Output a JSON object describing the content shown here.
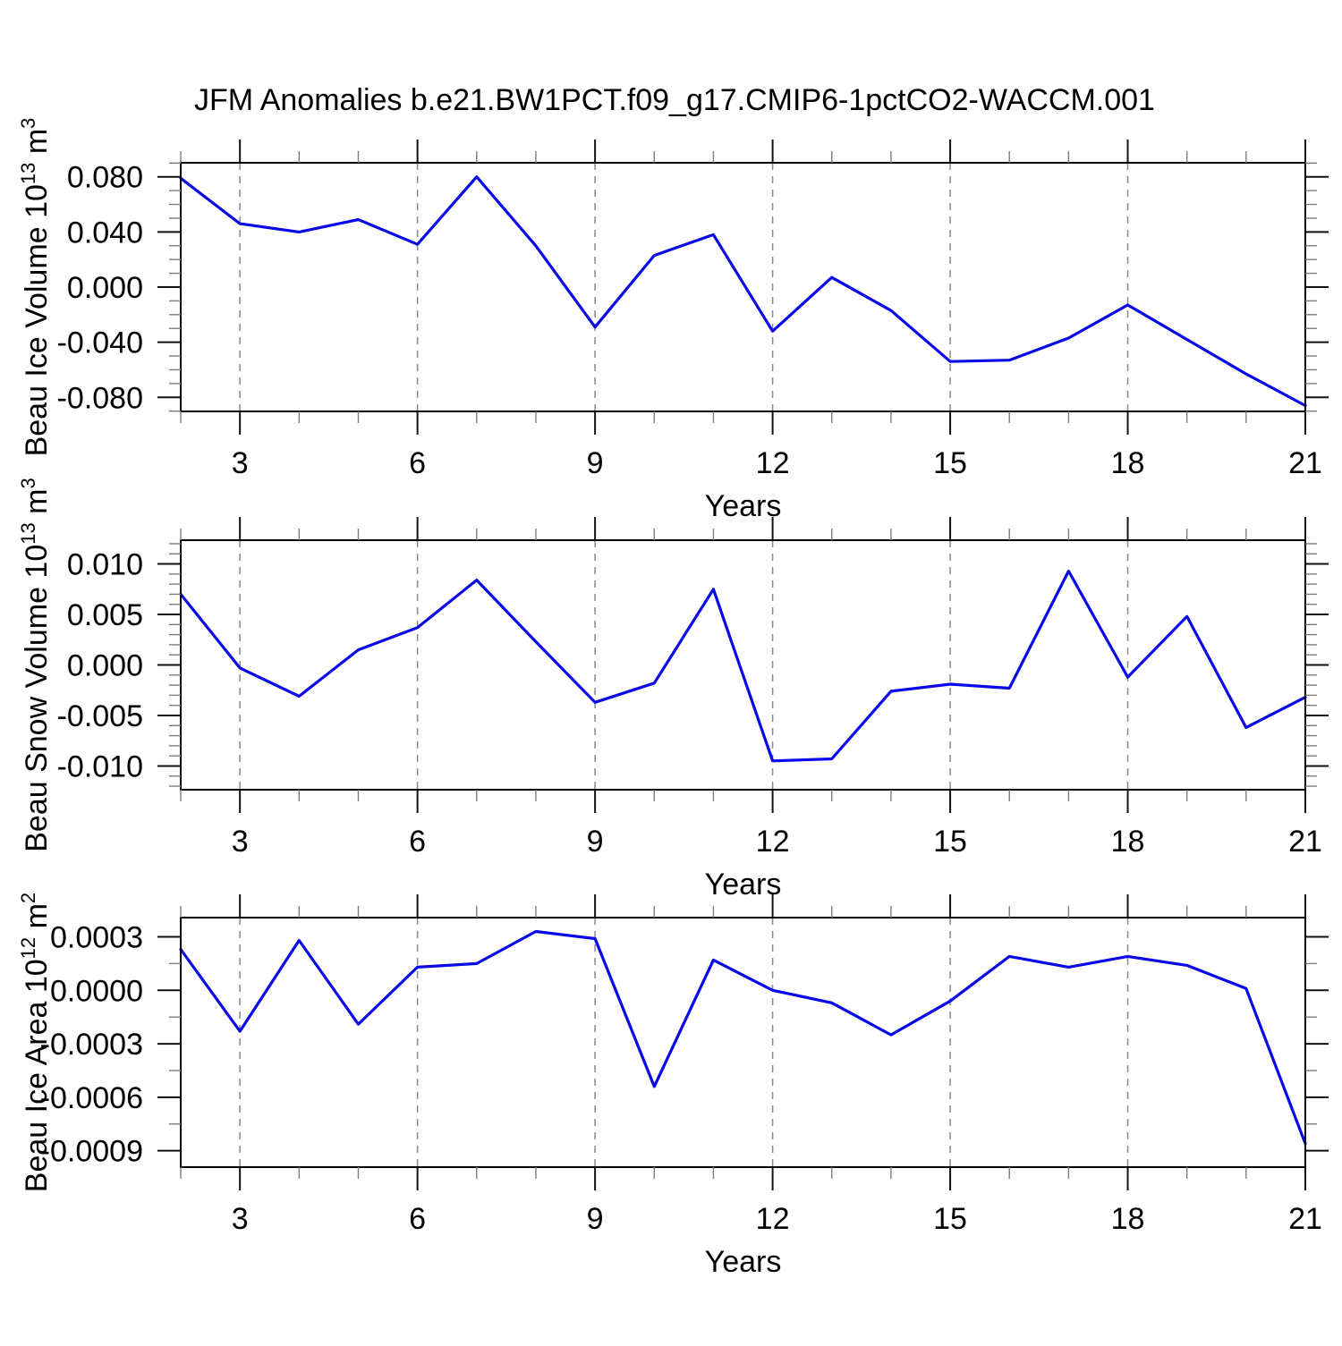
{
  "page": {
    "title": "JFM Anomalies b.e21.BW1PCT.f09_g17.CMIP6-1pctCO2-WACCM.001"
  },
  "colors": {
    "line": "#0808e8",
    "frame": "#000000",
    "grid": "#8a8a8a",
    "text": "#000000"
  },
  "chart_data": [
    {
      "type": "line",
      "name": "beau-ice-volume",
      "ylabel": "Beau Ice Volume 10^13 m^3",
      "ylabel_parts": [
        {
          "t": "Beau Ice Volume 10"
        },
        {
          "s": "13"
        },
        {
          "t": " m"
        },
        {
          "s": "3"
        }
      ],
      "xlabel": "Years",
      "x": [
        2,
        3,
        4,
        5,
        6,
        7,
        8,
        9,
        10,
        11,
        12,
        13,
        14,
        15,
        16,
        17,
        18,
        19,
        20,
        21
      ],
      "values": [
        0.079,
        0.046,
        0.04,
        0.049,
        0.031,
        0.08,
        0.03,
        -0.029,
        0.023,
        0.038,
        -0.032,
        0.007,
        -0.017,
        -0.054,
        -0.053,
        -0.037,
        -0.013,
        -0.038,
        -0.063,
        -0.086
      ],
      "xlim": [
        2,
        21
      ],
      "ylim": [
        -0.0902,
        0.0902
      ],
      "xticks": [
        3,
        6,
        9,
        12,
        15,
        18,
        21
      ],
      "xtick_labels": [
        "3",
        "6",
        "9",
        "12",
        "15",
        "18",
        "21"
      ],
      "x_minor_step": 1,
      "grid_x": [
        3,
        6,
        9,
        12,
        15,
        18
      ],
      "yticks": [
        0.08,
        0.04,
        0.0,
        -0.04,
        -0.08
      ],
      "ytick_labels": [
        "0.080",
        "0.040",
        "0.000",
        "-0.040",
        "-0.080"
      ],
      "y_minor_step": 0.01,
      "grid": "vertical-dashed-only",
      "legend": "none"
    },
    {
      "type": "line",
      "name": "beau-snow-volume",
      "ylabel": "Beau Snow Volume 10^13 m^3",
      "ylabel_parts": [
        {
          "t": "Beau Snow Volume 10"
        },
        {
          "s": "13"
        },
        {
          "t": " m"
        },
        {
          "s": "3"
        }
      ],
      "xlabel": "Years",
      "x": [
        2,
        3,
        4,
        5,
        6,
        7,
        8,
        9,
        10,
        11,
        12,
        13,
        14,
        15,
        16,
        17,
        18,
        19,
        20,
        21
      ],
      "values": [
        0.007,
        -0.0003,
        -0.0031,
        0.0015,
        0.0037,
        0.0084,
        0.0023,
        -0.0037,
        -0.0018,
        0.0075,
        -0.0095,
        -0.0093,
        -0.0026,
        -0.0019,
        -0.0023,
        0.0093,
        -0.0012,
        0.0048,
        -0.0062,
        -0.0032
      ],
      "xlim": [
        2,
        21
      ],
      "ylim": [
        -0.01235,
        0.01235
      ],
      "xticks": [
        3,
        6,
        9,
        12,
        15,
        18,
        21
      ],
      "xtick_labels": [
        "3",
        "6",
        "9",
        "12",
        "15",
        "18",
        "21"
      ],
      "x_minor_step": 1,
      "grid_x": [
        3,
        6,
        9,
        12,
        15,
        18
      ],
      "yticks": [
        0.01,
        0.005,
        0.0,
        -0.005,
        -0.01
      ],
      "ytick_labels": [
        "0.010",
        "0.005",
        "0.000",
        "-0.005",
        "-0.010"
      ],
      "y_minor_step": 0.001,
      "grid": "vertical-dashed-only",
      "legend": "none"
    },
    {
      "type": "line",
      "name": "beau-ice-area",
      "ylabel": "Beau Ice Area 10^12 m^2",
      "ylabel_parts": [
        {
          "t": "Beau Ice Area 10"
        },
        {
          "s": "12"
        },
        {
          "t": " m"
        },
        {
          "s": "2"
        }
      ],
      "xlabel": "Years",
      "x": [
        2,
        3,
        4,
        5,
        6,
        7,
        8,
        9,
        10,
        11,
        12,
        13,
        14,
        15,
        16,
        17,
        18,
        19,
        20,
        21
      ],
      "values": [
        0.00023,
        -0.00023,
        0.00028,
        -0.00019,
        0.00013,
        0.00015,
        0.00033,
        0.00029,
        -0.00054,
        0.00017,
        0.0,
        -7e-05,
        -0.00025,
        -6e-05,
        0.00019,
        0.00013,
        0.00019,
        0.00014,
        1e-05,
        -0.00086
      ],
      "xlim": [
        2,
        21
      ],
      "ylim": [
        -0.000992,
        0.000408
      ],
      "xticks": [
        3,
        6,
        9,
        12,
        15,
        18,
        21
      ],
      "xtick_labels": [
        "3",
        "6",
        "9",
        "12",
        "15",
        "18",
        "21"
      ],
      "x_minor_step": 1,
      "grid_x": [
        3,
        6,
        9,
        12,
        15,
        18
      ],
      "yticks": [
        0.0003,
        0.0,
        -0.0003,
        -0.0006,
        -0.0009
      ],
      "ytick_labels": [
        "0.0003",
        "0.0000",
        "-0.0003",
        "-0.0006",
        "-0.0009"
      ],
      "y_minor_step": 0.00015,
      "grid": "vertical-dashed-only",
      "legend": "none"
    }
  ]
}
